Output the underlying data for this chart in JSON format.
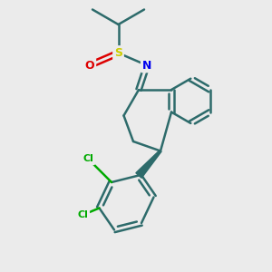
{
  "bg_color": "#ebebeb",
  "bond_color": "#2d6b6b",
  "bond_width": 1.8,
  "atom_colors": {
    "N": "#0000ee",
    "O": "#dd0000",
    "S": "#cccc00",
    "Cl": "#00aa00",
    "C": "#2d6b6b"
  }
}
